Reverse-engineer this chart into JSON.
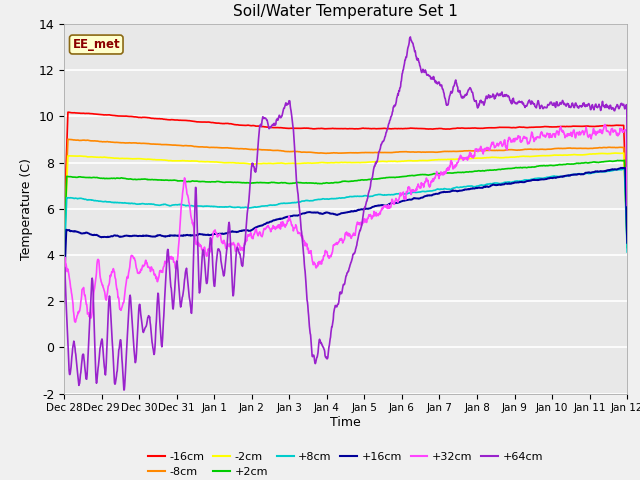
{
  "title": "Soil/Water Temperature Set 1",
  "xlabel": "Time",
  "ylabel": "Temperature (C)",
  "ylim": [
    -2,
    14
  ],
  "yticks": [
    -2,
    0,
    2,
    4,
    6,
    8,
    10,
    12,
    14
  ],
  "bg_color": "#e8e8e8",
  "fig_bg": "#f0f0f0",
  "colors": {
    "-16cm": "#ff0000",
    "-8cm": "#ff8800",
    "-2cm": "#ffff00",
    "+2cm": "#00cc00",
    "+8cm": "#00cccc",
    "+16cm": "#000099",
    "+32cm": "#ff44ff",
    "+64cm": "#9922cc"
  },
  "xtick_labels": [
    "Dec 28",
    "Dec 29",
    "Dec 30",
    "Dec 31",
    "Jan 1",
    "Jan 2",
    "Jan 3",
    "Jan 4",
    "Jan 5",
    "Jan 6",
    "Jan 7",
    "Jan 8",
    "Jan 9",
    "Jan 10",
    "Jan 11",
    "Jan 12"
  ],
  "legend_items_row1": [
    "-16cm",
    "-8cm",
    "-2cm",
    "+2cm",
    "+8cm",
    "+16cm"
  ],
  "legend_items_row2": [
    "+32cm",
    "+64cm"
  ]
}
